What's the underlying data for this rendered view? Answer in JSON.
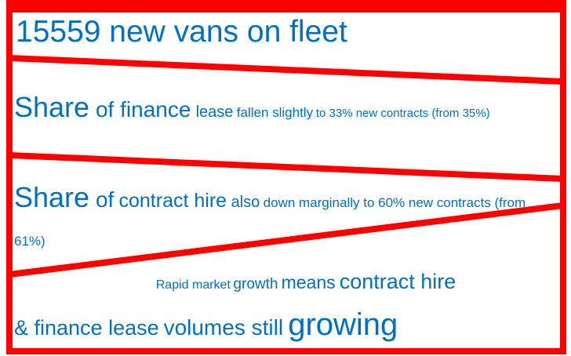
{
  "panels": [
    {
      "runs": [
        "15559 new vans on fleet"
      ]
    },
    {
      "runs": [
        "Share",
        "of finance",
        "lease",
        "fallen slightly",
        "to 33% new contracts (from 35%)"
      ]
    },
    {
      "runs": [
        "Share",
        "of",
        "contract hire",
        "also",
        "down marginally to 60% new contracts (from 61%)"
      ]
    },
    {
      "runs": [
        "Rapid market",
        "growth",
        "means",
        "contract hire",
        "& finance lease",
        "volumes still",
        "growing"
      ]
    }
  ]
}
